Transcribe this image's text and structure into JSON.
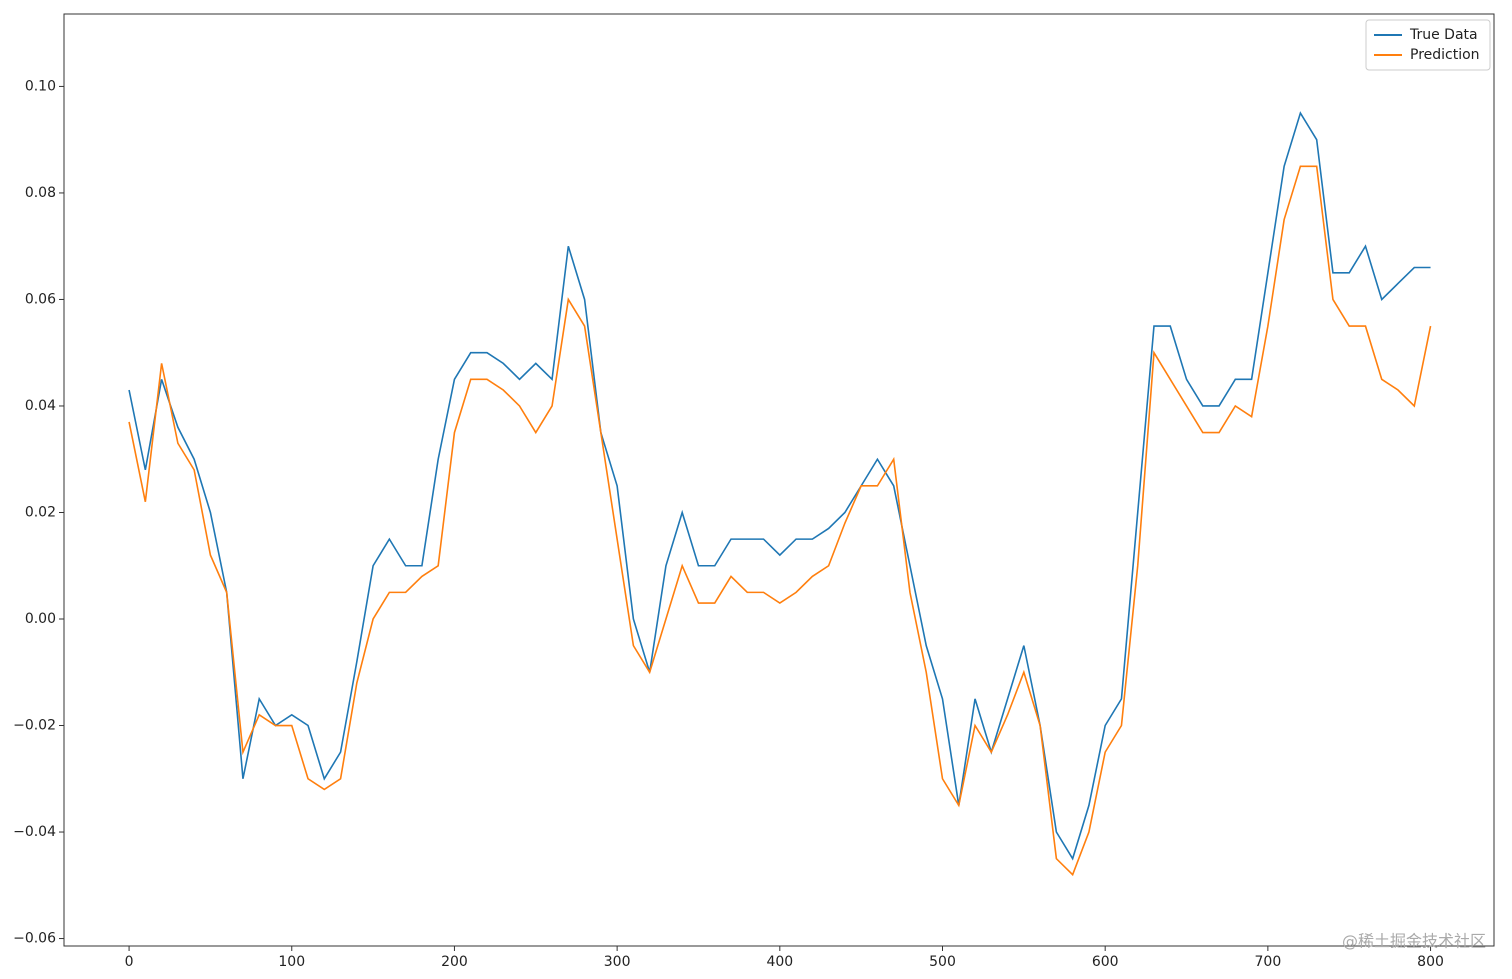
{
  "chart_data": {
    "type": "line",
    "x": [
      0,
      10,
      20,
      30,
      40,
      50,
      60,
      70,
      80,
      90,
      100,
      110,
      120,
      130,
      140,
      150,
      160,
      170,
      180,
      190,
      200,
      210,
      220,
      230,
      240,
      250,
      260,
      270,
      280,
      290,
      300,
      310,
      320,
      330,
      340,
      350,
      360,
      370,
      380,
      390,
      400,
      410,
      420,
      430,
      440,
      450,
      460,
      470,
      480,
      490,
      500,
      510,
      520,
      530,
      540,
      550,
      560,
      570,
      580,
      590,
      600,
      610,
      620,
      630,
      640,
      650,
      660,
      670,
      680,
      690,
      700,
      710,
      720,
      730,
      740,
      750,
      760,
      770,
      780,
      790,
      800
    ],
    "series": [
      {
        "name": "True Data",
        "color": "#1f77b4",
        "values": [
          0.043,
          0.028,
          0.045,
          0.036,
          0.03,
          0.02,
          0.005,
          -0.03,
          -0.015,
          -0.02,
          -0.018,
          -0.02,
          -0.03,
          -0.025,
          -0.008,
          0.01,
          0.015,
          0.01,
          0.01,
          0.03,
          0.045,
          0.05,
          0.05,
          0.048,
          0.045,
          0.048,
          0.045,
          0.07,
          0.06,
          0.035,
          0.025,
          0.0,
          -0.01,
          0.01,
          0.02,
          0.01,
          0.01,
          0.015,
          0.015,
          0.015,
          0.012,
          0.015,
          0.015,
          0.017,
          0.02,
          0.025,
          0.03,
          0.025,
          0.01,
          -0.005,
          -0.015,
          -0.035,
          -0.015,
          -0.025,
          -0.015,
          -0.005,
          -0.02,
          -0.04,
          -0.045,
          -0.035,
          -0.02,
          -0.015,
          0.02,
          0.055,
          0.055,
          0.045,
          0.04,
          0.04,
          0.045,
          0.045,
          0.065,
          0.085,
          0.095,
          0.09,
          0.065,
          0.065,
          0.07,
          0.06,
          0.063,
          0.066,
          0.066
        ]
      },
      {
        "name": "Prediction",
        "color": "#ff7f0e",
        "values": [
          0.037,
          0.022,
          0.048,
          0.033,
          0.028,
          0.012,
          0.005,
          -0.025,
          -0.018,
          -0.02,
          -0.02,
          -0.03,
          -0.032,
          -0.03,
          -0.012,
          0.0,
          0.005,
          0.005,
          0.008,
          0.01,
          0.035,
          0.045,
          0.045,
          0.043,
          0.04,
          0.035,
          0.04,
          0.06,
          0.055,
          0.035,
          0.015,
          -0.005,
          -0.01,
          0.0,
          0.01,
          0.003,
          0.003,
          0.008,
          0.005,
          0.005,
          0.003,
          0.005,
          0.008,
          0.01,
          0.018,
          0.025,
          0.025,
          0.03,
          0.005,
          -0.01,
          -0.03,
          -0.035,
          -0.02,
          -0.025,
          -0.018,
          -0.01,
          -0.02,
          -0.045,
          -0.048,
          -0.04,
          -0.025,
          -0.02,
          0.01,
          0.05,
          0.045,
          0.04,
          0.035,
          0.035,
          0.04,
          0.038,
          0.055,
          0.075,
          0.085,
          0.085,
          0.06,
          0.055,
          0.055,
          0.045,
          0.043,
          0.04,
          0.055
        ]
      }
    ],
    "xlim": [
      -40,
      839
    ],
    "ylim": [
      -0.0614,
      0.1136
    ],
    "xticks": [
      0,
      100,
      200,
      300,
      400,
      500,
      600,
      700,
      800
    ],
    "yticks": [
      {
        "value": -0.06,
        "label": "−0.06"
      },
      {
        "value": -0.04,
        "label": "−0.04"
      },
      {
        "value": -0.02,
        "label": "−0.02"
      },
      {
        "value": 0,
        "label": "0.00"
      },
      {
        "value": 0.02,
        "label": "0.02"
      },
      {
        "value": 0.04,
        "label": "0.04"
      },
      {
        "value": 0.06,
        "label": "0.06"
      },
      {
        "value": 0.08,
        "label": "0.08"
      },
      {
        "value": 0.1,
        "label": "0.10"
      }
    ],
    "legend": "upper right",
    "watermark": "@稀土掘金技术社区"
  }
}
